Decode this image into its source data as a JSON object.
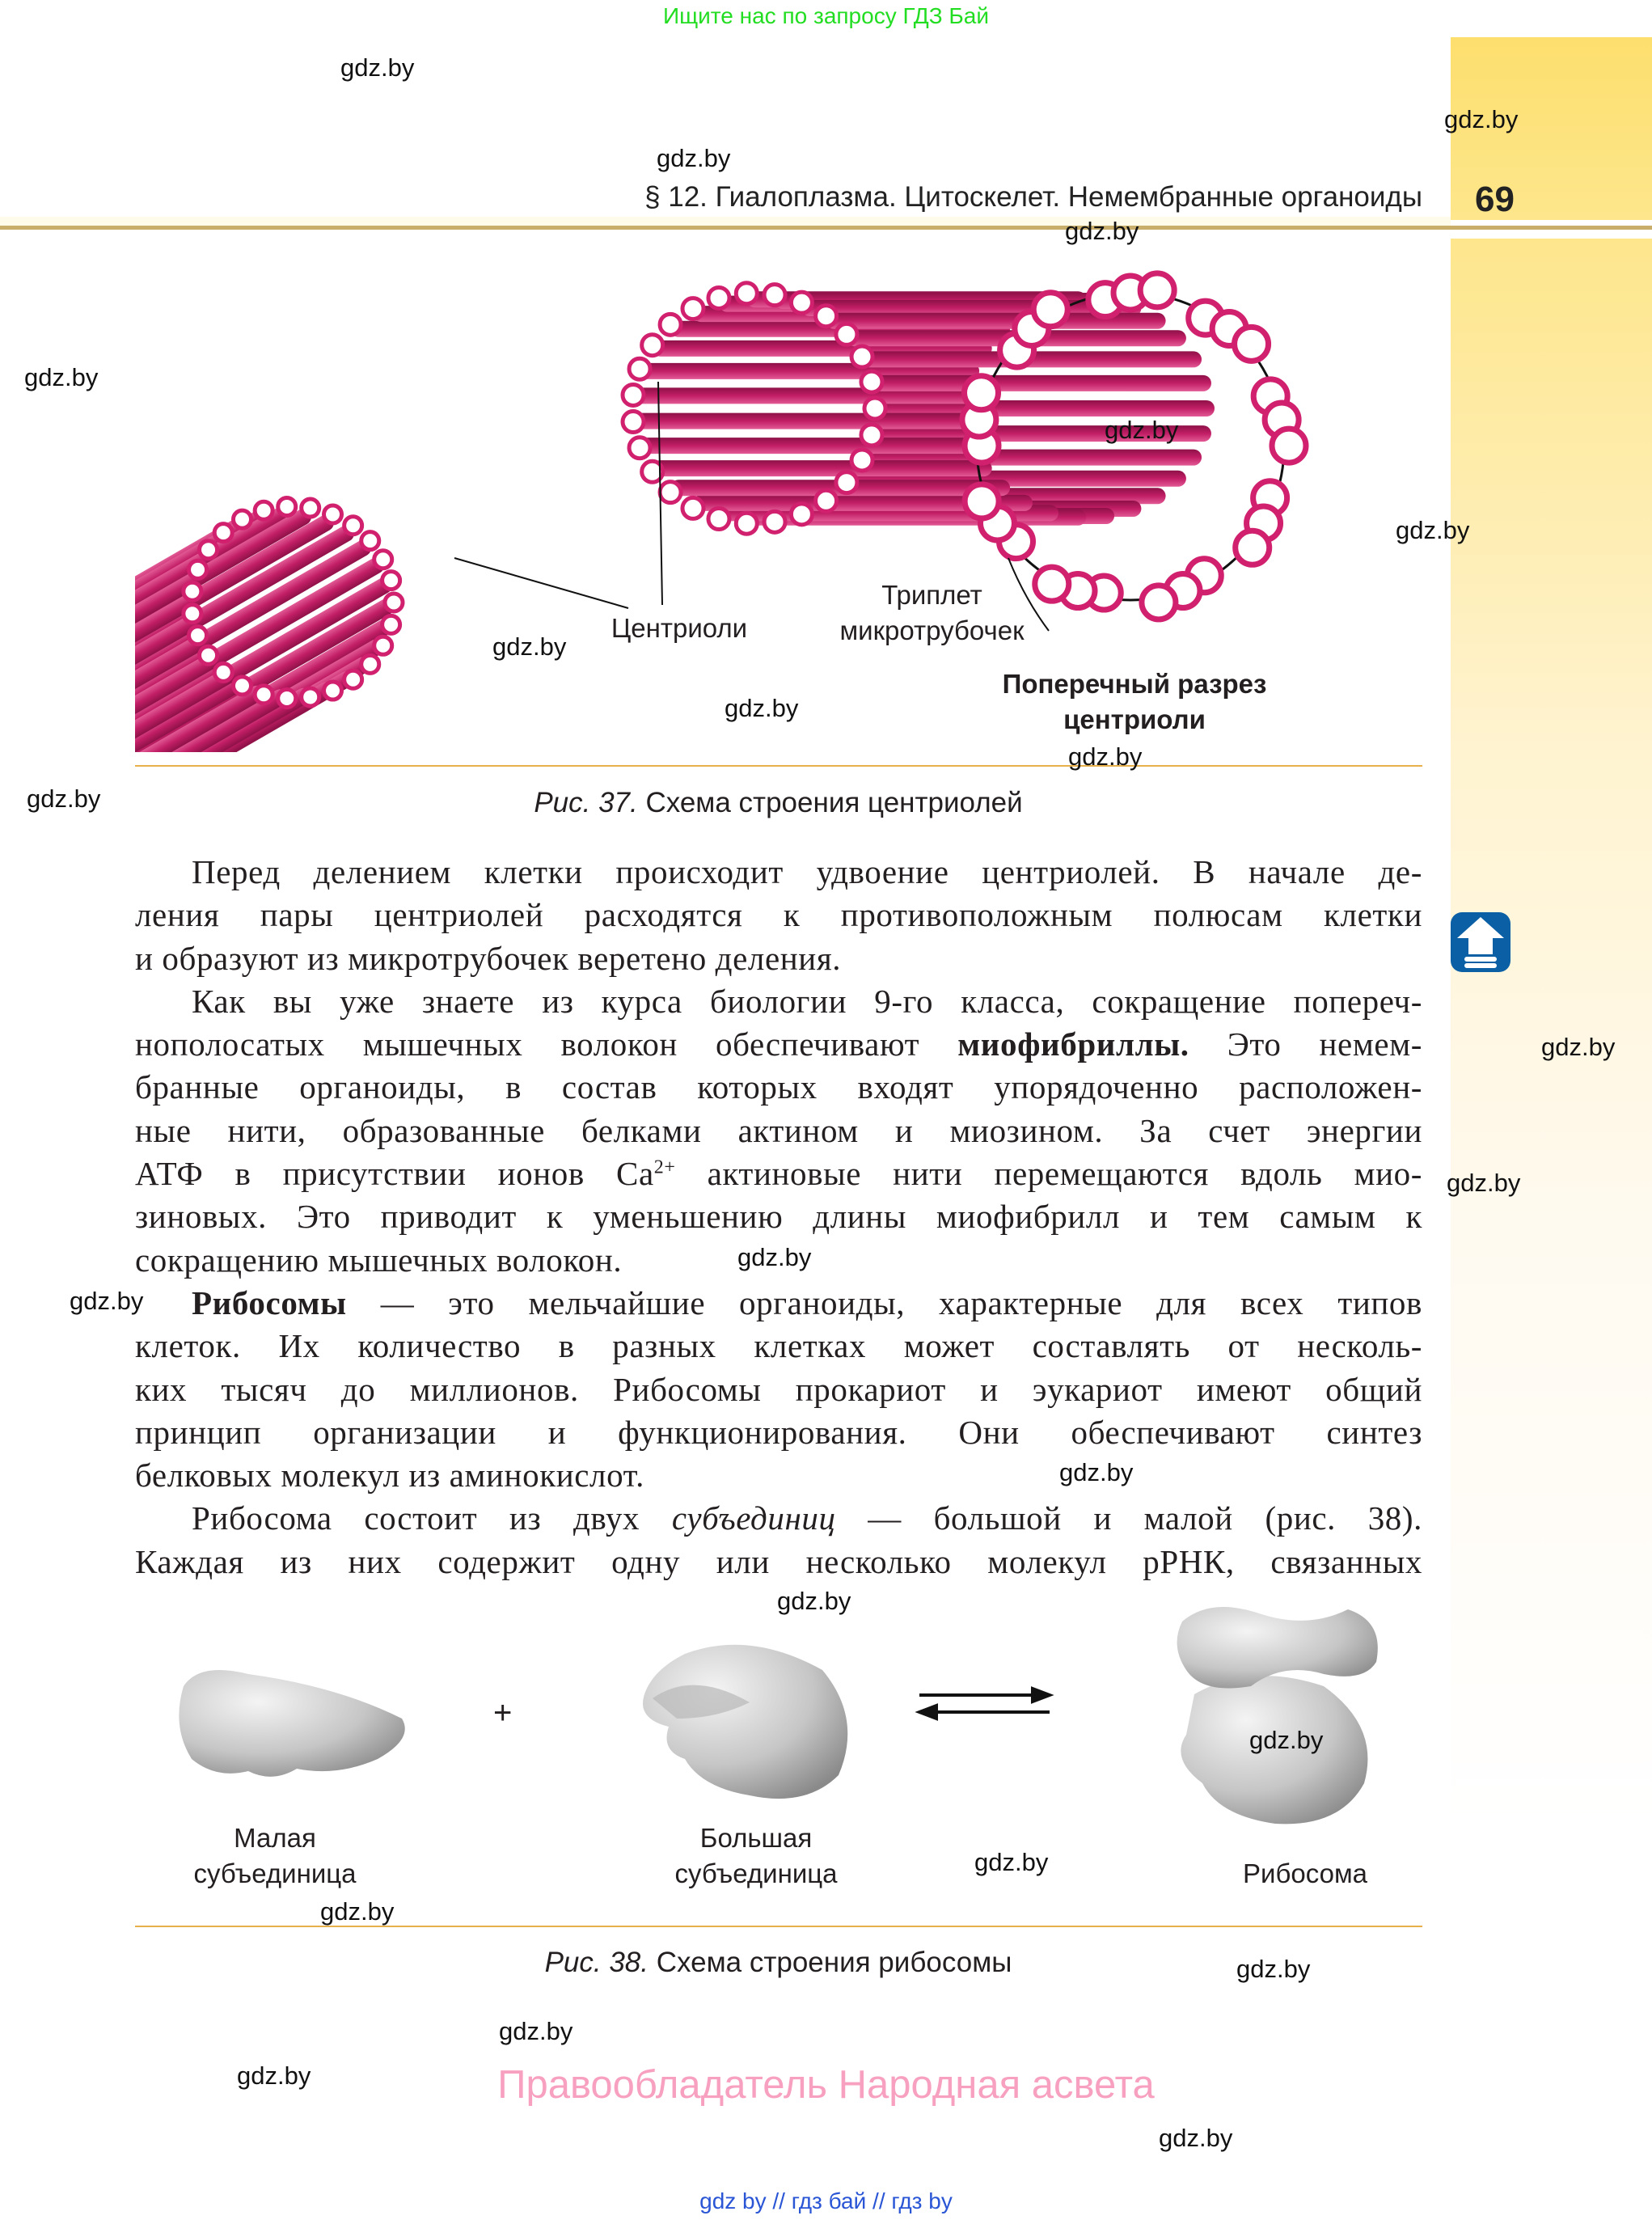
{
  "promo_top": "Ищите нас по запросу ГДЗ Бай",
  "header": {
    "running_title": "§ 12. Гиалоплазма. Цитоскелет. Немембранные органоиды",
    "page_number": "69"
  },
  "watermark": "gdz.by",
  "figure37": {
    "label_centrioles": "Центриоли",
    "label_triplet_1": "Триплет",
    "label_triplet_2": "микротрубочек",
    "label_section_1": "Поперечный разрез",
    "label_section_2": "центриоли",
    "caption_num": "Рис. 37.",
    "caption_text": " Схема строения центриолей"
  },
  "body_lines": [
    {
      "ind": true,
      "seg": [
        {
          "t": "Перед делением клетки происходит удвоение центриолей. В начале де-"
        }
      ]
    },
    {
      "seg": [
        {
          "t": "ления пары центриолей расходятся к противоположным полюсам клетки"
        }
      ]
    },
    {
      "last": true,
      "seg": [
        {
          "t": "и образуют из микротрубочек веретено деления."
        }
      ]
    },
    {
      "ind": true,
      "seg": [
        {
          "t": "Как вы уже знаете из курса биологии 9-го класса, сокращение попереч-"
        }
      ]
    },
    {
      "seg": [
        {
          "t": "нополосатых мышечных волокон обеспечивают "
        },
        {
          "t": "миофибриллы.",
          "s": "b"
        },
        {
          "t": " Это немем-"
        }
      ]
    },
    {
      "seg": [
        {
          "t": "бранные органоиды, в состав которых входят упорядоченно расположен-"
        }
      ]
    },
    {
      "seg": [
        {
          "t": "ные нити, образованные белками актином и миозином. За счет энергии"
        }
      ]
    },
    {
      "seg": [
        {
          "t": "АТФ в присутствии ионов Ca"
        },
        {
          "t": "2+",
          "s": "sup"
        },
        {
          "t": " актиновые нити перемещаются вдоль мио-"
        }
      ]
    },
    {
      "seg": [
        {
          "t": "зиновых. Это приводит к уменьшению длины миофибрилл и тем самым к"
        }
      ]
    },
    {
      "last": true,
      "seg": [
        {
          "t": "сокращению мышечных волокон."
        }
      ]
    },
    {
      "ind": true,
      "seg": [
        {
          "t": "Рибосомы",
          "s": "b"
        },
        {
          "t": " — это мельчайшие органоиды, характерные для всех типов"
        }
      ]
    },
    {
      "seg": [
        {
          "t": "клеток. Их количество в разных клетках может составлять от несколь-"
        }
      ]
    },
    {
      "seg": [
        {
          "t": "ких тысяч до миллионов. Рибосомы прокариот и эукариот имеют общий"
        }
      ]
    },
    {
      "seg": [
        {
          "t": "принцип организации и функционирования. Они обеспечивают синтез"
        }
      ]
    },
    {
      "last": true,
      "seg": [
        {
          "t": "белковых молекул из аминокислот."
        }
      ]
    },
    {
      "ind": true,
      "seg": [
        {
          "t": "Рибосома состоит из двух "
        },
        {
          "t": "субъединиц",
          "s": "i"
        },
        {
          "t": " — большой и малой (рис. 38)."
        }
      ]
    },
    {
      "seg": [
        {
          "t": "Каждая из них содержит одну или несколько молекул рРНК, связанных"
        }
      ]
    }
  ],
  "figure38": {
    "plus": "+",
    "small_1": "Малая",
    "small_2": "субъединица",
    "large_1": "Большая",
    "large_2": "субъединица",
    "ribosome": "Рибосома",
    "caption_num": "Рис. 38.",
    "caption_text": " Схема строения рибосомы"
  },
  "rights": "Правообладатель Народная асвета",
  "footer_links": "gdz by  //  гдз бай  //  гдз by",
  "colors": {
    "tubule": "#d0206e",
    "accent_band": "#fddf6e",
    "icon_blue": "#0b5fa5"
  }
}
